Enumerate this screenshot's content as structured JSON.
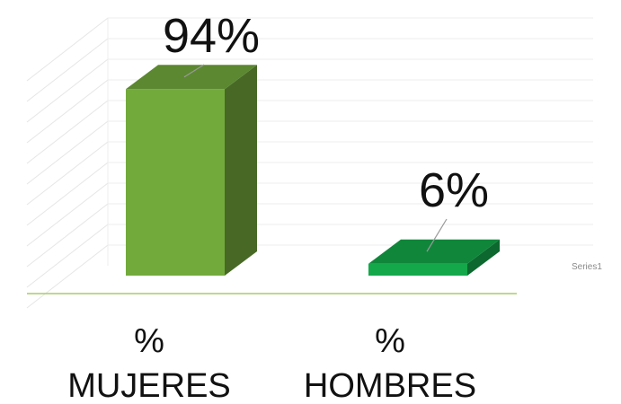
{
  "chart_data": {
    "type": "bar",
    "style": "3d-column",
    "categories": [
      {
        "line1": "%",
        "line2": "MUJERES"
      },
      {
        "line1": "%",
        "line2": "HOMBRES"
      }
    ],
    "series": [
      {
        "name": "Series1",
        "values": [
          94,
          6
        ],
        "data_labels": [
          "94%",
          "6%"
        ],
        "colors": [
          "#72aa3c",
          "#14a84a"
        ]
      }
    ],
    "ylim": [
      0,
      100
    ],
    "grid": true,
    "legend": "right"
  }
}
